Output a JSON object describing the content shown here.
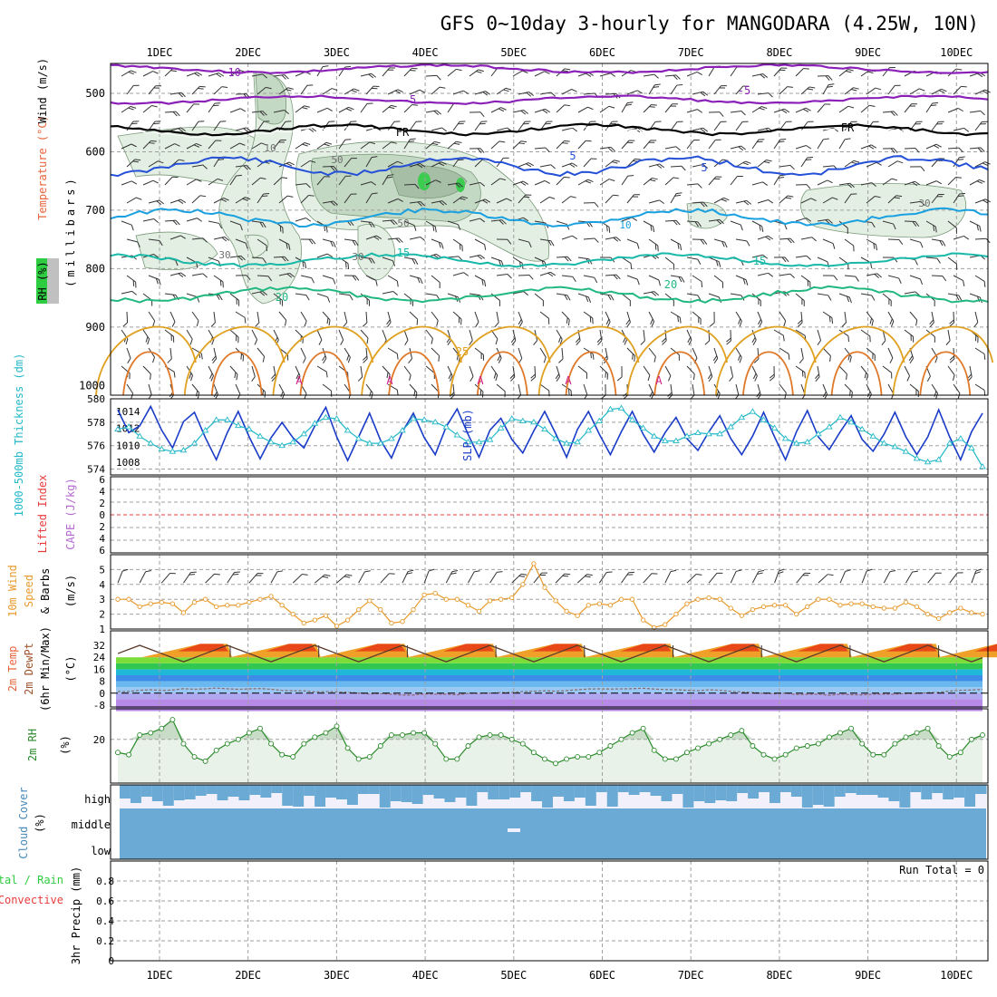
{
  "title": "GFS 0~10day 3-hourly for MANGODARA (4.25W, 10N)",
  "dates": [
    "1DEC",
    "2DEC",
    "3DEC",
    "4DEC",
    "5DEC",
    "6DEC",
    "7DEC",
    "8DEC",
    "9DEC",
    "10DEC"
  ],
  "colors": {
    "grid": "#a0a0a0",
    "rh_fill": "#e3efe3",
    "rh_fill2": "#c4d9c4",
    "rh_fill3": "#a6bea6",
    "cloud": "#6aaad4",
    "slp": "#1a3cc8",
    "thickness": "#22b8c8",
    "wind10m": "#e89a2c",
    "rh2m": "#2a8a2a",
    "purple": "#8a20b8",
    "frz": "#000000"
  },
  "panels": {
    "upper": {
      "ylabel_rh": "RH (%)",
      "ylabel_temp": "Temperature (°C)",
      "ylabel_wind": "Wind (m/s)",
      "ylabel_p": "(millibars)",
      "yticks": [
        "500",
        "600",
        "700",
        "800",
        "900",
        "1000"
      ],
      "contour_labels": [
        "-10",
        "-5",
        "-5",
        "FR",
        "FR",
        "5",
        "5",
        "10",
        "15",
        "15",
        "20",
        "20",
        "30",
        "50",
        "50",
        "30",
        "30",
        "10",
        "25"
      ]
    },
    "thickness": {
      "ylabel_left": "1000-500mb Thickness (dm)",
      "ylabel_right": "SLP (mb)",
      "yticks_left": [
        "574",
        "576",
        "578",
        "580"
      ],
      "yticks_right": [
        "1008",
        "1010",
        "1012",
        "1014"
      ]
    },
    "cape": {
      "ylabel_li": "Lifted Index",
      "ylabel_cape": "CAPE (J/kg)",
      "yticks": [
        "6",
        "4",
        "2",
        "0",
        "2",
        "4",
        "6"
      ]
    },
    "wind10m": {
      "ylabel_a": "10m Wind",
      "ylabel_b": "Speed",
      "ylabel_c": "& Barbs",
      "ylabel_unit": "(m/s)",
      "yticks": [
        "1",
        "2",
        "3",
        "4",
        "5"
      ]
    },
    "temp2m": {
      "ylabel_a": "2m Temp",
      "ylabel_b": "2m DewPt",
      "ylabel_c": "(6hr Min/Max)",
      "ylabel_unit": "(°C)",
      "yticks": [
        "32",
        "24",
        "16",
        "8",
        "0",
        "-8"
      ]
    },
    "rh2m": {
      "ylabel": "2m RH",
      "ylabel_unit": "(%)",
      "yticks": [
        "20"
      ]
    },
    "cloud": {
      "ylabel": "Cloud Cover",
      "ylabel_unit": "(%)",
      "levels": [
        "high",
        "middle",
        "low"
      ]
    },
    "precip": {
      "ylabel_a": "Total / Rain",
      "ylabel_b": "Convective",
      "ylabel_c": "3hr Precip (mm)",
      "yticks": [
        "0",
        "0.2",
        "0.4",
        "0.6",
        "0.8"
      ],
      "run_total": "Run Total = 0"
    }
  },
  "chart_data": [
    {
      "type": "line",
      "title": "1000-500mb Thickness / SLP",
      "series": [
        {
          "name": "SLP (mb)",
          "values": [
            1014.2,
            1011.5,
            1012.3,
            1014.6,
            1011.8,
            1009.7,
            1012.8,
            1013.9,
            1010.9,
            1008.3,
            1011.5,
            1014.0,
            1011.0,
            1008.4,
            1010.9,
            1012.7,
            1010.9,
            1009.7,
            1012.3,
            1014.5,
            1011.0,
            1008.2,
            1011.0,
            1013.8,
            1010.6,
            1008.5,
            1011.6,
            1013.8,
            1010.9,
            1008.9,
            1012.2,
            1014.3,
            1011.3,
            1008.6,
            1011.8,
            1013.2,
            1010.7,
            1009.1,
            1011.7,
            1014.0,
            1011.4,
            1008.6,
            1011.9,
            1014.0,
            1011.3,
            1008.9,
            1011.6,
            1014.0,
            1011.3,
            1009.2,
            1011.5,
            1013.3,
            1010.8,
            1009.4,
            1011.6,
            1013.5,
            1010.8,
            1008.9,
            1011.1,
            1013.9,
            1011.0,
            1008.3,
            1011.6,
            1014.1,
            1011.0,
            1009.5,
            1011.6,
            1013.5,
            1010.7,
            1009.3,
            1011.3,
            1013.9,
            1011.0,
            1008.9,
            1011.0,
            1014.2,
            1011.0,
            1008.3,
            1011.6,
            1013.8
          ]
        },
        {
          "name": "1000-500mb Thickness (dm)",
          "values": [
            577.4,
            577.6,
            576.8,
            576.2,
            575.7,
            575.5,
            575.6,
            576.2,
            577.3,
            578.2,
            578.2,
            577.7,
            577.4,
            576.8,
            576.3,
            576.0,
            576.3,
            577.0,
            577.9,
            578.4,
            578.3,
            577.3,
            576.6,
            576.2,
            576.2,
            576.6,
            577.3,
            578.3,
            578.2,
            578.0,
            577.6,
            576.9,
            576.3,
            576.3,
            576.5,
            577.5,
            578.3,
            578.1,
            578.0,
            577.4,
            576.6,
            576.2,
            576.3,
            577.3,
            578.1,
            579.1,
            579.2,
            578.2,
            577.5,
            576.8,
            576.4,
            576.4,
            576.8,
            577.1,
            577.0,
            577.0,
            577.6,
            578.4,
            578.9,
            578.2,
            577.5,
            576.6,
            576.2,
            576.3,
            577.0,
            577.6,
            578.4,
            578.0,
            577.4,
            576.8,
            576.2,
            575.9,
            575.5,
            574.9,
            574.6,
            574.8,
            576.2,
            576.6,
            575.8,
            574.2
          ]
        }
      ],
      "ylim_left": [
        573.5,
        580
      ],
      "ylim_right": [
        1006.5,
        1015.5
      ]
    },
    {
      "type": "line",
      "title": "10m Wind Speed",
      "series": [
        {
          "name": "10m Wind Speed (m/s)",
          "values": [
            3.0,
            3.0,
            2.5,
            2.7,
            2.8,
            2.7,
            2.1,
            2.8,
            3.0,
            2.5,
            2.6,
            2.6,
            2.8,
            3.0,
            3.2,
            2.6,
            2.0,
            1.4,
            1.6,
            1.9,
            1.2,
            1.6,
            2.3,
            2.9,
            2.3,
            1.4,
            1.5,
            2.3,
            3.3,
            3.4,
            3.0,
            3.0,
            2.6,
            2.2,
            2.9,
            3.0,
            3.1,
            4.0,
            5.4,
            3.8,
            2.9,
            2.2,
            1.9,
            2.6,
            2.7,
            2.6,
            3.0,
            3.0,
            1.6,
            1.1,
            1.3,
            2.0,
            2.7,
            3.0,
            3.1,
            3.0,
            2.4,
            1.9,
            2.3,
            2.5,
            2.6,
            2.6,
            2.0,
            2.5,
            3.0,
            3.0,
            2.6,
            2.7,
            2.7,
            2.5,
            2.4,
            2.4,
            2.8,
            2.5,
            2.0,
            1.7,
            2.1,
            2.4,
            2.1,
            2.0
          ]
        }
      ],
      "ylim": [
        1,
        6
      ]
    },
    {
      "type": "line",
      "title": "2m RH",
      "series": [
        {
          "name": "2m RH (%)",
          "values": [
            14,
            13,
            22,
            23,
            25,
            29,
            18,
            12,
            10,
            15,
            18,
            20,
            23,
            25,
            18,
            13,
            12,
            18,
            21,
            23,
            26,
            16,
            11,
            12,
            17,
            22,
            22,
            23,
            23,
            18,
            11,
            11,
            17,
            21,
            22,
            22,
            20,
            18,
            14,
            11,
            9,
            11,
            12,
            12,
            14,
            17,
            20,
            23,
            25,
            15,
            11,
            11,
            14,
            16,
            18,
            20,
            22,
            24,
            17,
            13,
            11,
            13,
            16,
            17,
            18,
            21,
            23,
            25,
            18,
            13,
            13,
            18,
            21,
            23,
            25,
            17,
            12,
            14,
            20,
            22
          ]
        }
      ],
      "ylim": [
        0,
        34
      ]
    },
    {
      "type": "bar",
      "title": "3hr Precip (mm)",
      "series": [
        {
          "name": "Total / Rain",
          "values": []
        }
      ],
      "ylim": [
        0,
        1
      ]
    }
  ]
}
